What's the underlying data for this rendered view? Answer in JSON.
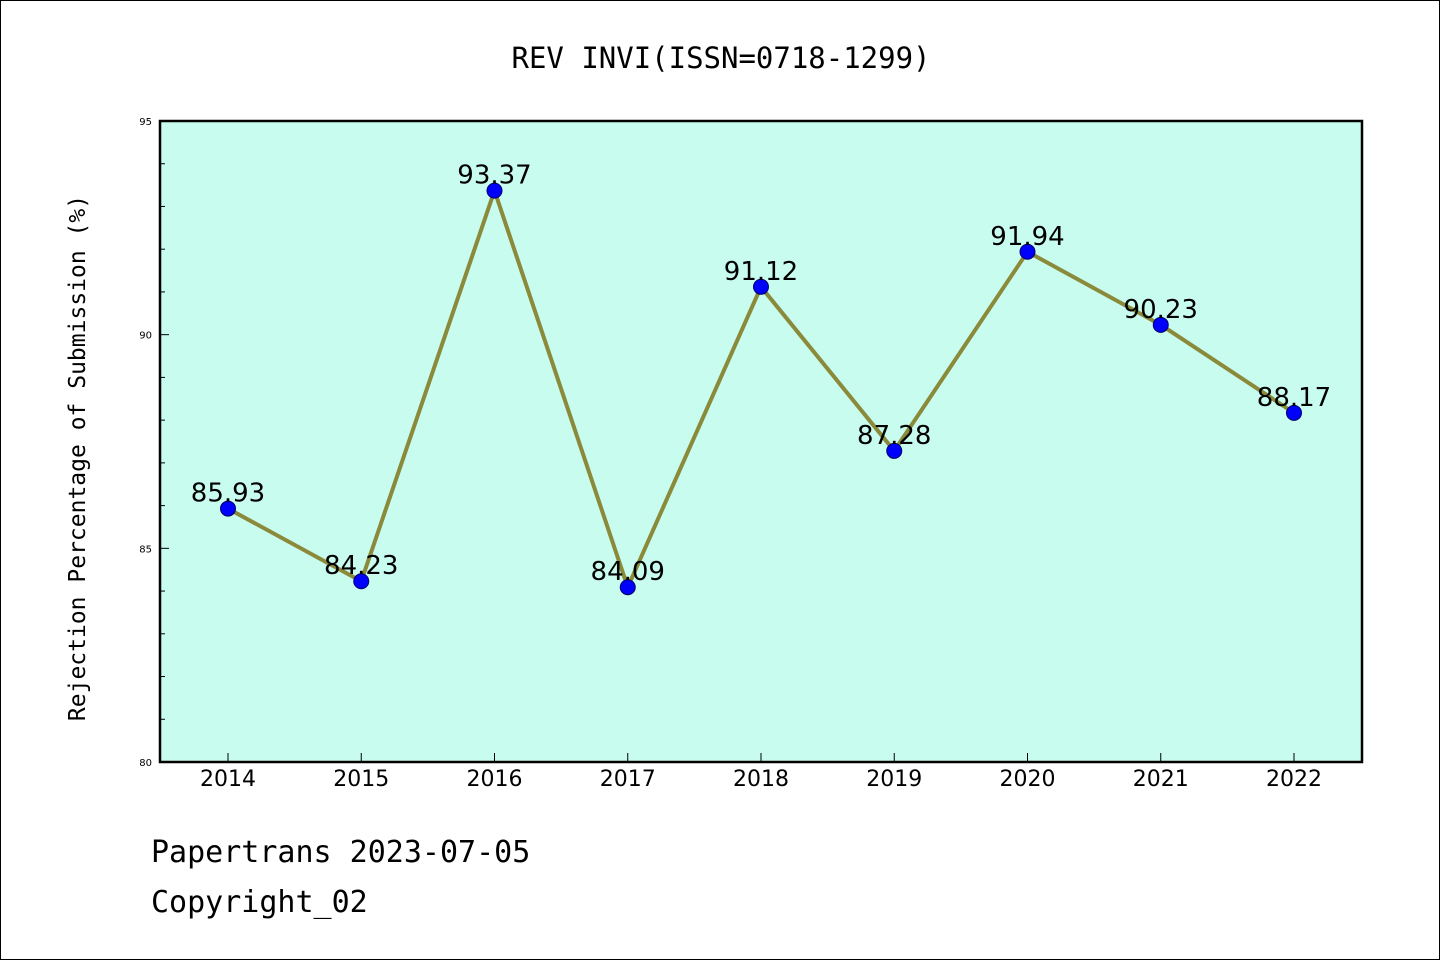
{
  "chart_data": {
    "type": "line",
    "title": "REV INVI(ISSN=0718-1299)",
    "xlabel": "",
    "ylabel": "Rejection Percentage of Submission (%)",
    "ylim": [
      80,
      95
    ],
    "yticks": [
      "80",
      "85",
      "90",
      "95"
    ],
    "categories": [
      "2014",
      "2015",
      "2016",
      "2017",
      "2018",
      "2019",
      "2020",
      "2021",
      "2022"
    ],
    "values": [
      85.93,
      84.23,
      93.37,
      84.09,
      91.12,
      87.28,
      91.94,
      90.23,
      88.17
    ],
    "value_labels": [
      "85.93",
      "84.23",
      "93.37",
      "84.09",
      "91.12",
      "87.28",
      "91.94",
      "90.23",
      "88.17"
    ],
    "grid": false,
    "colors": {
      "plot_background": "#c8fcee",
      "line": "#8a8a3a",
      "marker": "#0000ff"
    }
  },
  "footer": {
    "line1": "Papertrans 2023-07-05",
    "line2": "Copyright_02"
  }
}
